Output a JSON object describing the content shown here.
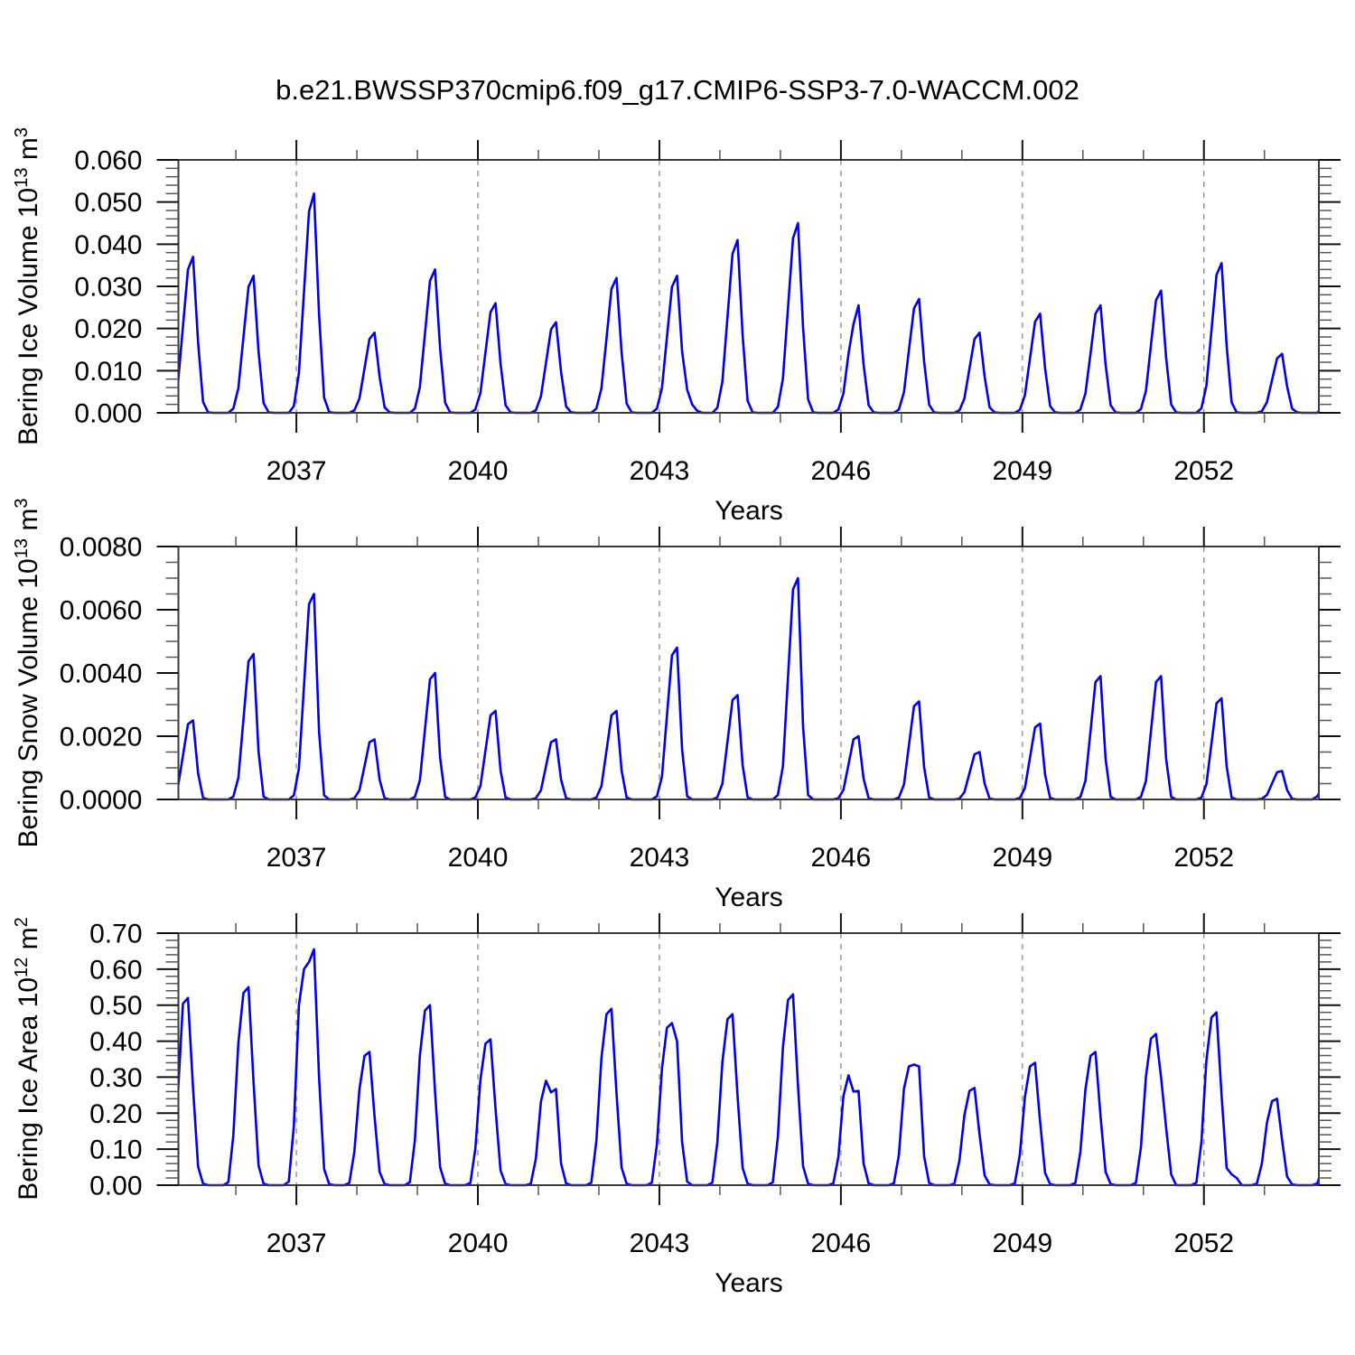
{
  "title": "b.e21.BWSSP370cmip6.f09_g17.CMIP6-SSP3-7.0-WACCM.002",
  "background_color": "#ffffff",
  "line_color": "#0000EE",
  "grid_color": "#8a8a8a",
  "frame_color": "#3a3a3a",
  "chart_data": [
    {
      "type": "line",
      "name": "bering-ice-volume",
      "ylabel": {
        "prefix": "Bering Ice Volume 10",
        "sup1": "13",
        "mid": " m",
        "sup2": "3"
      },
      "xlabel": "Years",
      "ylim": [
        0,
        0.06
      ],
      "xlim": [
        2035.05,
        2053.9
      ],
      "ytick_labels": [
        "0.000",
        "0.010",
        "0.020",
        "0.030",
        "0.040",
        "0.050",
        "0.060"
      ],
      "ytick_values": [
        0,
        0.01,
        0.02,
        0.03,
        0.04,
        0.05,
        0.06
      ],
      "ytick_minor_step": 0.002,
      "xtick_major_years": [
        2037,
        2040,
        2043,
        2046,
        2049,
        2052
      ],
      "xtick_minor_step_years": 1,
      "grid_years": [
        2037,
        2040,
        2043,
        2046,
        2049,
        2052
      ],
      "legend": "none",
      "grid": "vertical-dashed",
      "start_year": 2035,
      "months_per_year": 12,
      "monthly": [
        [
          0.0067,
          0.0204,
          0.034,
          0.037,
          0.0167,
          0.0026,
          0.0001,
          0,
          0,
          0,
          0,
          0.001
        ],
        [
          0.0059,
          0.0179,
          0.0299,
          0.0325,
          0.0146,
          0.0023,
          0.0001,
          0,
          0,
          0,
          0,
          0.0016
        ],
        [
          0.0094,
          0.0286,
          0.0478,
          0.052,
          0.0234,
          0.0036,
          0.0002,
          0,
          0,
          0,
          0,
          0.0006
        ],
        [
          0.0034,
          0.0105,
          0.0175,
          0.019,
          0.0086,
          0.0013,
          0.0001,
          0,
          0,
          0,
          0,
          0.001
        ],
        [
          0.0061,
          0.0187,
          0.0313,
          0.034,
          0.0153,
          0.0024,
          0.0001,
          0,
          0,
          0,
          0,
          0.0008
        ],
        [
          0.0047,
          0.0143,
          0.0239,
          0.026,
          0.0117,
          0.0018,
          0.0001,
          0,
          0,
          0,
          0,
          0.0006
        ],
        [
          0.0039,
          0.0118,
          0.0198,
          0.0215,
          0.0097,
          0.0015,
          0.0001,
          0,
          0,
          0,
          0,
          0.001
        ],
        [
          0.0058,
          0.0176,
          0.0294,
          0.032,
          0.0144,
          0.0022,
          0.0001,
          0,
          0,
          0,
          0,
          0.001
        ],
        [
          0.0059,
          0.0179,
          0.0299,
          0.0325,
          0.0146,
          0.0055,
          0.002,
          0.0005,
          0,
          0,
          0,
          0.0012
        ],
        [
          0.0074,
          0.0226,
          0.0377,
          0.041,
          0.0185,
          0.0029,
          0.0001,
          0,
          0,
          0,
          0,
          0.0014
        ],
        [
          0.0081,
          0.0248,
          0.0414,
          0.045,
          0.0203,
          0.0032,
          0.0001,
          0,
          0,
          0,
          0,
          0.0008
        ],
        [
          0.0046,
          0.014,
          0.021,
          0.0255,
          0.0115,
          0.0018,
          0.0001,
          0,
          0,
          0,
          0,
          0.0008
        ],
        [
          0.0049,
          0.0149,
          0.0248,
          0.027,
          0.0122,
          0.0019,
          0.0001,
          0,
          0,
          0,
          0,
          0.0006
        ],
        [
          0.0034,
          0.0105,
          0.0175,
          0.019,
          0.0086,
          0.0013,
          0.0001,
          0,
          0,
          0,
          0,
          0.0007
        ],
        [
          0.0042,
          0.0129,
          0.0216,
          0.0235,
          0.0106,
          0.0016,
          0.0001,
          0,
          0,
          0,
          0,
          0.0008
        ],
        [
          0.0046,
          0.014,
          0.0235,
          0.0255,
          0.0115,
          0.0018,
          0.0001,
          0,
          0,
          0,
          0,
          0.0009
        ],
        [
          0.0052,
          0.016,
          0.0267,
          0.029,
          0.0131,
          0.002,
          0.0001,
          0,
          0,
          0,
          0,
          0.0011
        ],
        [
          0.0064,
          0.0195,
          0.0327,
          0.0355,
          0.016,
          0.0025,
          0.0001,
          0,
          0,
          0,
          0,
          0.0004
        ],
        [
          0.0025,
          0.0077,
          0.0129,
          0.014,
          0.0063,
          0.001,
          0.0001,
          0,
          0,
          0,
          0,
          0.0015
        ]
      ]
    },
    {
      "type": "line",
      "name": "bering-snow-volume",
      "ylabel": {
        "prefix": "Bering Snow Volume 10",
        "sup1": "13",
        "mid": " m",
        "sup2": "3"
      },
      "xlabel": "Years",
      "ylim": [
        0,
        0.008
      ],
      "xlim": [
        2035.05,
        2053.9
      ],
      "ytick_labels": [
        "0.0000",
        "0.0020",
        "0.0040",
        "0.0060",
        "0.0080"
      ],
      "ytick_values": [
        0,
        0.002,
        0.004,
        0.006,
        0.008
      ],
      "ytick_minor_step": 0.0005,
      "xtick_major_years": [
        2037,
        2040,
        2043,
        2046,
        2049,
        2052
      ],
      "xtick_minor_step_years": 1,
      "grid_years": [
        2037,
        2040,
        2043,
        2046,
        2049,
        2052
      ],
      "legend": "none",
      "grid": "vertical-dashed",
      "start_year": 2035,
      "months_per_year": 12,
      "monthly": [
        [
          0.00038,
          0.00138,
          0.00238,
          0.0025,
          0.00083,
          5e-05,
          0,
          0,
          0,
          0,
          0,
          9e-05
        ],
        [
          0.00069,
          0.00253,
          0.00437,
          0.0046,
          0.00152,
          9e-05,
          0,
          0,
          0,
          0,
          0,
          0.00013
        ],
        [
          0.00098,
          0.00358,
          0.00618,
          0.0065,
          0.00215,
          0.00013,
          0,
          0,
          0,
          0,
          0,
          4e-05
        ],
        [
          0.00029,
          0.00105,
          0.00181,
          0.0019,
          0.00063,
          4e-05,
          0,
          0,
          0,
          0,
          0,
          8e-05
        ],
        [
          0.0006,
          0.0022,
          0.0038,
          0.004,
          0.00132,
          8e-05,
          0,
          0,
          0,
          0,
          0,
          6e-05
        ],
        [
          0.00042,
          0.00154,
          0.00266,
          0.0028,
          0.00092,
          6e-05,
          0,
          0,
          0,
          0,
          0,
          4e-05
        ],
        [
          0.00029,
          0.00105,
          0.00181,
          0.0019,
          0.00063,
          4e-05,
          0,
          0,
          0,
          0,
          0,
          6e-05
        ],
        [
          0.00042,
          0.00154,
          0.00266,
          0.0028,
          0.00092,
          6e-05,
          0,
          0,
          0,
          0,
          0,
          0.0001
        ],
        [
          0.00072,
          0.00264,
          0.00456,
          0.0048,
          0.00158,
          0.0001,
          0,
          0,
          0,
          0,
          0,
          7e-05
        ],
        [
          0.0005,
          0.00182,
          0.00314,
          0.0033,
          0.00109,
          7e-05,
          0,
          0,
          0,
          0,
          0,
          0.00014
        ],
        [
          0.00105,
          0.00385,
          0.00665,
          0.007,
          0.00231,
          0.00014,
          0,
          0,
          0,
          0,
          0,
          4e-05
        ],
        [
          0.0003,
          0.0011,
          0.0019,
          0.002,
          0.00066,
          4e-05,
          0,
          0,
          0,
          0,
          0,
          6e-05
        ],
        [
          0.00047,
          0.00171,
          0.00295,
          0.0031,
          0.00102,
          6e-05,
          0,
          0,
          0,
          0,
          0,
          3e-05
        ],
        [
          0.00023,
          0.00083,
          0.00143,
          0.0015,
          0.0005,
          3e-05,
          0,
          0,
          0,
          0,
          0,
          5e-05
        ],
        [
          0.00036,
          0.00132,
          0.00228,
          0.0024,
          0.00079,
          5e-05,
          0,
          0,
          0,
          0,
          0,
          8e-05
        ],
        [
          0.00059,
          0.00215,
          0.00371,
          0.0039,
          0.00129,
          8e-05,
          0,
          0,
          0,
          0,
          0,
          8e-05
        ],
        [
          0.00059,
          0.00215,
          0.00371,
          0.0039,
          0.00129,
          8e-05,
          0,
          0,
          0,
          0,
          0,
          6e-05
        ],
        [
          0.00048,
          0.00176,
          0.00304,
          0.0032,
          0.00106,
          6e-05,
          0,
          0,
          0,
          0,
          0,
          2e-05
        ],
        [
          0.00014,
          0.0005,
          0.00086,
          0.0009,
          0.0003,
          2e-05,
          0,
          0,
          0,
          0,
          0.0001,
          0.0004
        ]
      ]
    },
    {
      "type": "line",
      "name": "bering-ice-area",
      "ylabel": {
        "prefix": "Bering Ice Area 10",
        "sup1": "12",
        "mid": " m",
        "sup2": "2"
      },
      "xlabel": "Years",
      "ylim": [
        0,
        0.7
      ],
      "xlim": [
        2035.05,
        2053.9
      ],
      "ytick_labels": [
        "0.00",
        "0.10",
        "0.20",
        "0.30",
        "0.40",
        "0.50",
        "0.60",
        "0.70"
      ],
      "ytick_values": [
        0,
        0.1,
        0.2,
        0.3,
        0.4,
        0.5,
        0.6,
        0.7
      ],
      "ytick_minor_step": 0.02,
      "xtick_major_years": [
        2037,
        2040,
        2043,
        2046,
        2049,
        2052
      ],
      "xtick_minor_step_years": 1,
      "grid_years": [
        2037,
        2040,
        2043,
        2046,
        2049,
        2052
      ],
      "legend": "none",
      "grid": "vertical-dashed",
      "start_year": 2035,
      "months_per_year": 12,
      "monthly": [
        [
          0.25,
          0.504,
          0.52,
          0.27,
          0.052,
          0.004,
          0,
          0,
          0,
          0,
          0.008,
          0.138
        ],
        [
          0.396,
          0.534,
          0.55,
          0.286,
          0.055,
          0.004,
          0,
          0,
          0,
          0,
          0.01,
          0.164
        ],
        [
          0.5,
          0.6,
          0.62,
          0.655,
          0.3,
          0.045,
          0.003,
          0,
          0,
          0,
          0.006,
          0.093
        ],
        [
          0.266,
          0.359,
          0.37,
          0.192,
          0.037,
          0.003,
          0,
          0,
          0,
          0,
          0.008,
          0.125
        ],
        [
          0.36,
          0.485,
          0.5,
          0.26,
          0.05,
          0.004,
          0,
          0,
          0,
          0,
          0.006,
          0.101
        ],
        [
          0.292,
          0.393,
          0.405,
          0.211,
          0.041,
          0.003,
          0,
          0,
          0,
          0,
          0.004,
          0.073
        ],
        [
          0.232,
          0.29,
          0.258,
          0.267,
          0.06,
          0.005,
          0,
          0,
          0,
          0,
          0.007,
          0.123
        ],
        [
          0.353,
          0.475,
          0.49,
          0.255,
          0.049,
          0.004,
          0,
          0,
          0,
          0,
          0.007,
          0.113
        ],
        [
          0.324,
          0.437,
          0.45,
          0.4,
          0.12,
          0.01,
          0,
          0,
          0,
          0,
          0.007,
          0.119
        ],
        [
          0.342,
          0.461,
          0.475,
          0.247,
          0.048,
          0.004,
          0,
          0,
          0,
          0,
          0.008,
          0.133
        ],
        [
          0.382,
          0.514,
          0.53,
          0.276,
          0.053,
          0.004,
          0,
          0,
          0,
          0,
          0.005,
          0.078
        ],
        [
          0.248,
          0.305,
          0.26,
          0.262,
          0.06,
          0.005,
          0,
          0,
          0,
          0,
          0.005,
          0.084
        ],
        [
          0.268,
          0.33,
          0.335,
          0.33,
          0.08,
          0.006,
          0,
          0,
          0,
          0,
          0.004,
          0.068
        ],
        [
          0.194,
          0.262,
          0.27,
          0.14,
          0.027,
          0.002,
          0,
          0,
          0,
          0,
          0.005,
          0.085
        ],
        [
          0.245,
          0.33,
          0.34,
          0.177,
          0.034,
          0.003,
          0,
          0,
          0,
          0,
          0.006,
          0.093
        ],
        [
          0.266,
          0.359,
          0.37,
          0.192,
          0.037,
          0.003,
          0,
          0,
          0,
          0,
          0.006,
          0.105
        ],
        [
          0.302,
          0.407,
          0.42,
          0.3,
          0.16,
          0.03,
          0,
          0,
          0,
          0,
          0.007,
          0.12
        ],
        [
          0.346,
          0.466,
          0.48,
          0.25,
          0.048,
          0.03,
          0.02,
          0,
          0,
          0,
          0.004,
          0.06
        ],
        [
          0.173,
          0.233,
          0.24,
          0.125,
          0.024,
          0.002,
          0,
          0,
          0,
          0,
          0.005,
          0.05
        ]
      ]
    }
  ]
}
